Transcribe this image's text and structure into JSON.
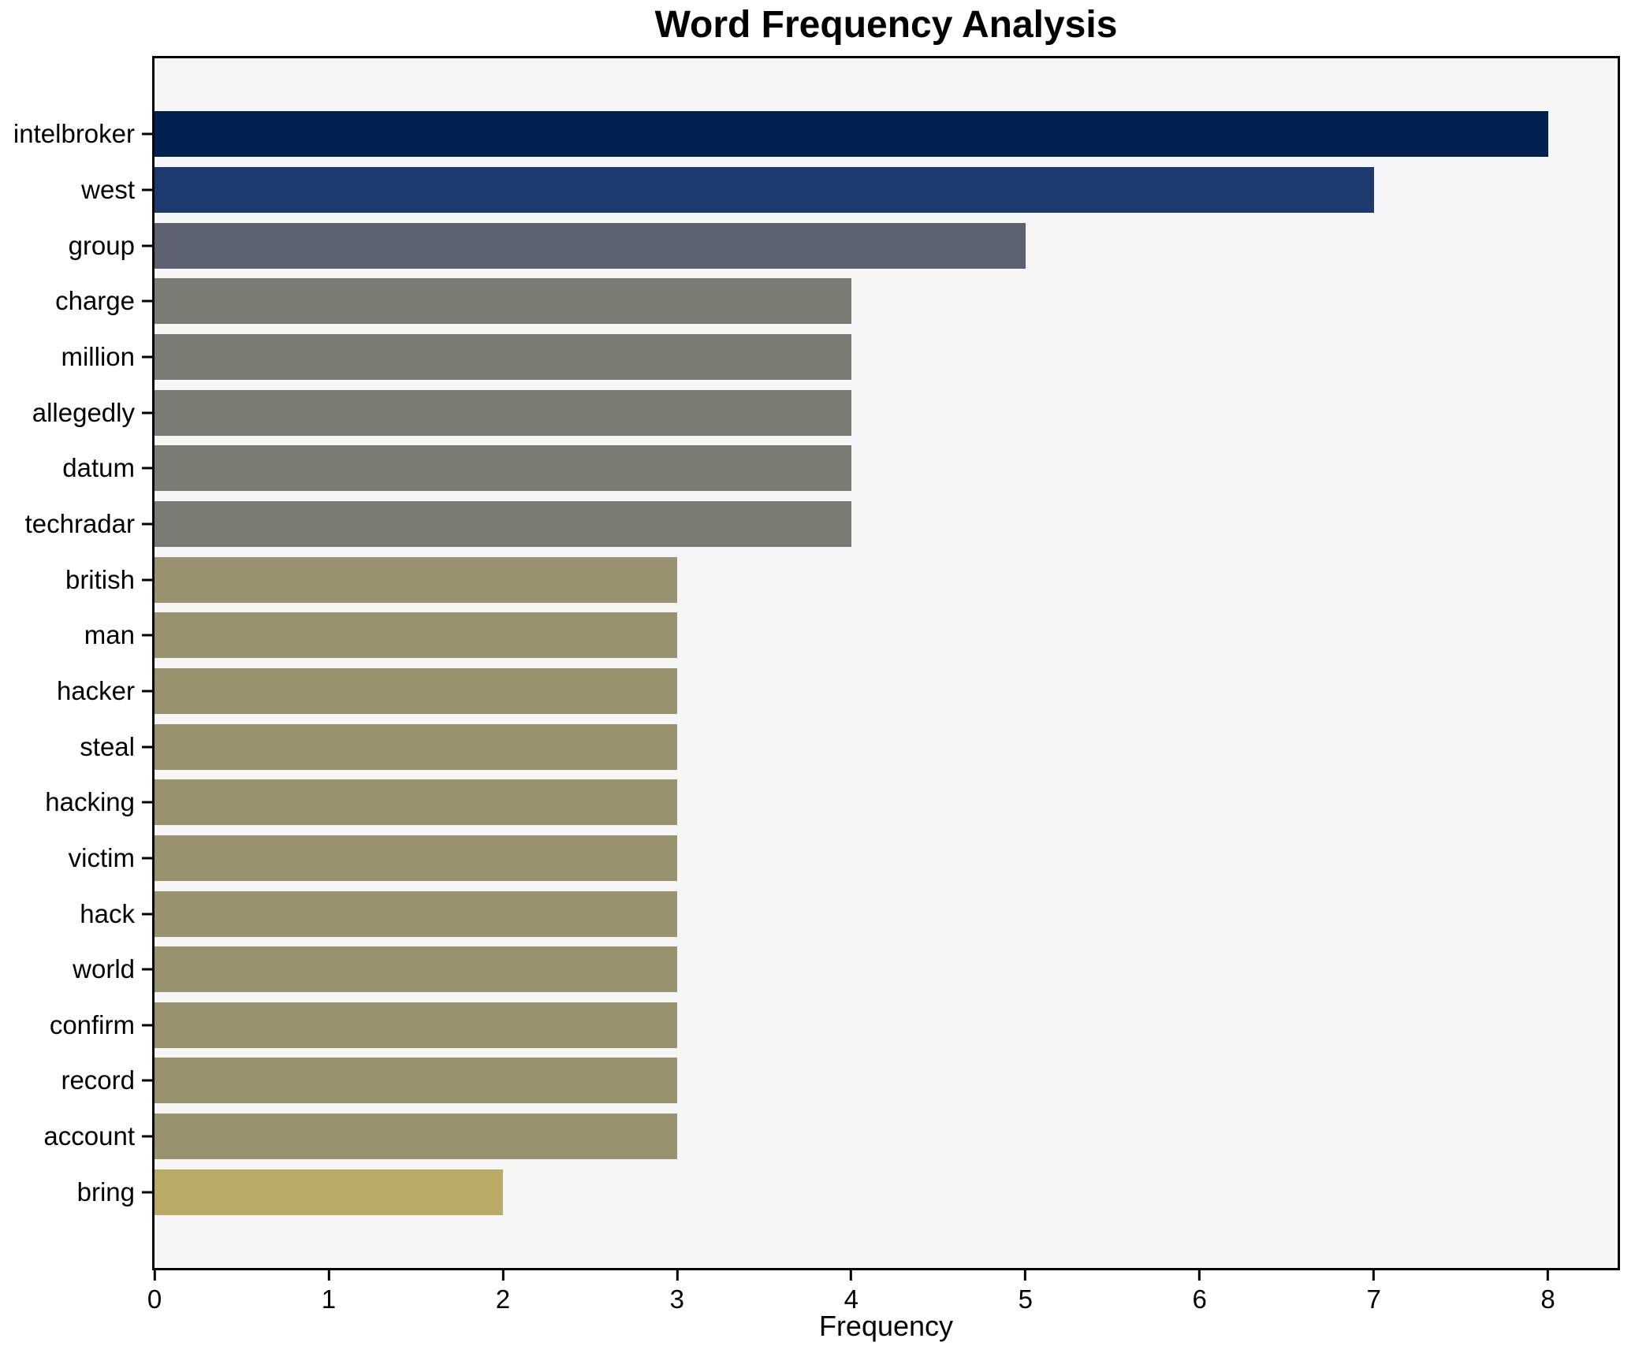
{
  "chart_data": {
    "type": "bar",
    "orientation": "horizontal",
    "title": "Word Frequency Analysis",
    "xlabel": "Frequency",
    "ylabel": "",
    "categories": [
      "intelbroker",
      "west",
      "group",
      "charge",
      "million",
      "allegedly",
      "datum",
      "techradar",
      "british",
      "man",
      "hacker",
      "steal",
      "hacking",
      "victim",
      "hack",
      "world",
      "confirm",
      "record",
      "account",
      "bring"
    ],
    "values": [
      8,
      7,
      5,
      4,
      4,
      4,
      4,
      4,
      3,
      3,
      3,
      3,
      3,
      3,
      3,
      3,
      3,
      3,
      3,
      2
    ],
    "bar_colors": [
      "#022150",
      "#1c3a6e",
      "#5d6270",
      "#7c7b73",
      "#7c7b73",
      "#7c7b73",
      "#7c7b73",
      "#7c7b73",
      "#99926f",
      "#99926f",
      "#99926f",
      "#99926f",
      "#99926f",
      "#99926f",
      "#99926f",
      "#99926f",
      "#99926f",
      "#99926f",
      "#99926f",
      "#b9aa66"
    ],
    "xticks": [
      "0",
      "1",
      "2",
      "3",
      "4",
      "5",
      "6",
      "7",
      "8"
    ],
    "xlim": [
      0,
      8.4
    ],
    "grid": false,
    "legend": null,
    "plot_background": "#f6f6f7",
    "figure_background": "#ffffff",
    "spine_color": "#000000",
    "text_color": "#000000"
  }
}
